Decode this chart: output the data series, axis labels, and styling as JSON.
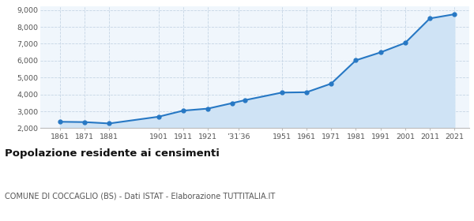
{
  "years": [
    1861,
    1871,
    1881,
    1901,
    1911,
    1921,
    1931,
    1936,
    1951,
    1961,
    1971,
    1981,
    1991,
    2001,
    2011,
    2021
  ],
  "population": [
    2380,
    2360,
    2280,
    2680,
    3040,
    3160,
    3490,
    3660,
    4110,
    4130,
    4640,
    6020,
    6490,
    7050,
    8500,
    8750
  ],
  "x_tick_labels": [
    "1861",
    "1871",
    "1881",
    "1901",
    "1911",
    "1921",
    "’31′36",
    "1951",
    "1961",
    "1971",
    "1981",
    "1991",
    "2001",
    "2011",
    "2021"
  ],
  "x_tick_positions": [
    1861,
    1871,
    1881,
    1901,
    1911,
    1921,
    1933.5,
    1951,
    1961,
    1971,
    1981,
    1991,
    2001,
    2011,
    2021
  ],
  "ylim": [
    2000,
    9200
  ],
  "yticks": [
    2000,
    3000,
    4000,
    5000,
    6000,
    7000,
    8000,
    9000
  ],
  "ytick_labels": [
    "2,000",
    "3,000",
    "4,000",
    "5,000",
    "6,000",
    "7,000",
    "8,000",
    "9,000"
  ],
  "line_color": "#2778c4",
  "fill_color": "#cfe3f5",
  "marker_color": "#2778c4",
  "bg_color": "#f0f6fc",
  "grid_color": "#c5d5e5",
  "title": "Popolazione residente ai censimenti",
  "subtitle": "COMUNE DI COCCAGLIO (BS) - Dati ISTAT - Elaborazione TUTTITALIA.IT",
  "title_fontsize": 9.5,
  "subtitle_fontsize": 7,
  "tick_fontsize": 6.8,
  "xlim_left": 1853,
  "xlim_right": 2027
}
